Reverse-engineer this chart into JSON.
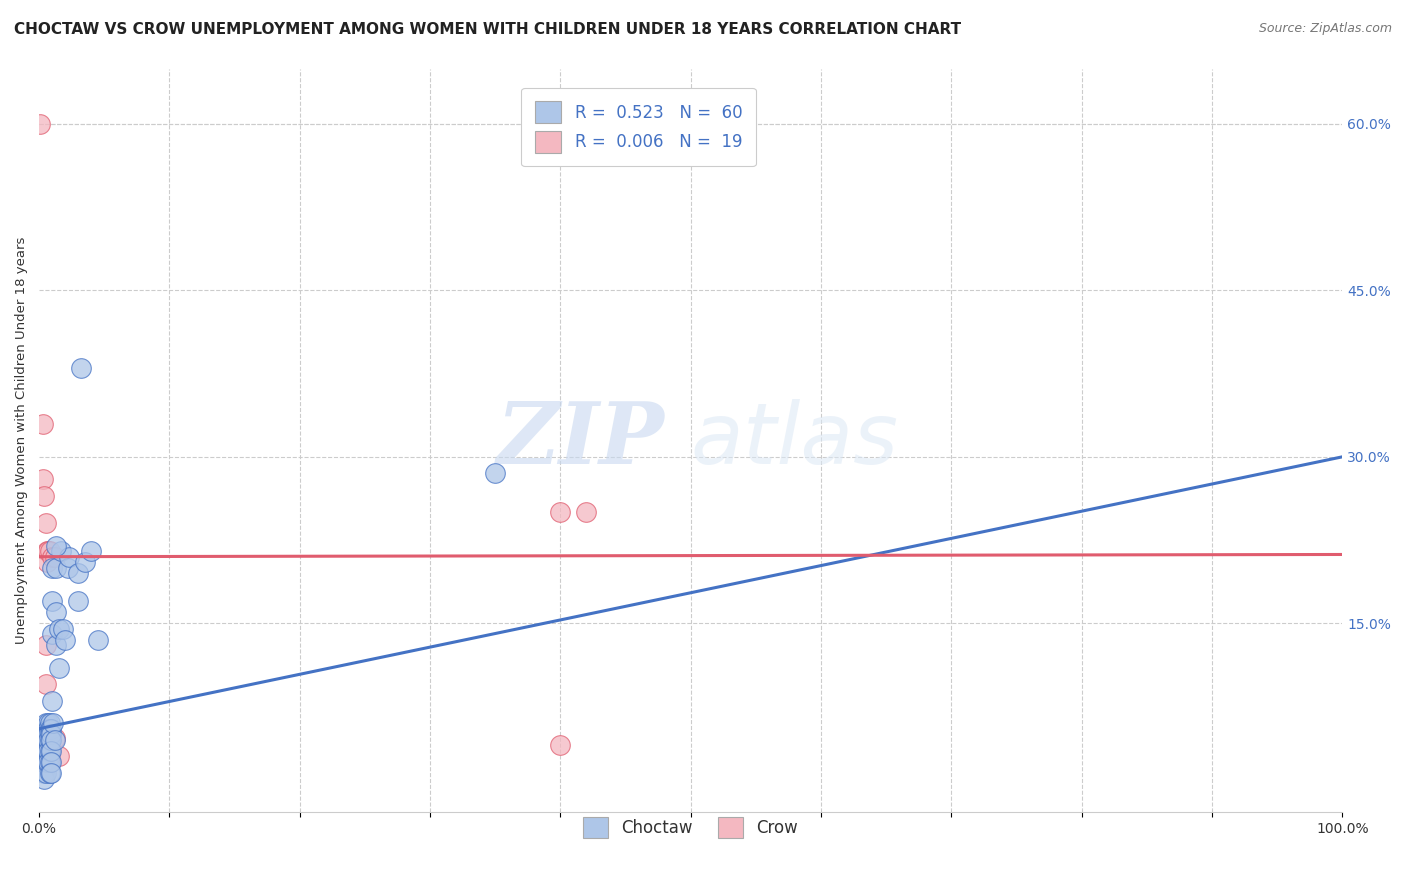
{
  "title": "CHOCTAW VS CROW UNEMPLOYMENT AMONG WOMEN WITH CHILDREN UNDER 18 YEARS CORRELATION CHART",
  "source": "Source: ZipAtlas.com",
  "ylabel": "Unemployment Among Women with Children Under 18 years",
  "xlim": [
    0,
    1.0
  ],
  "ylim": [
    -0.02,
    0.65
  ],
  "yticks_right": [
    0.15,
    0.3,
    0.45,
    0.6
  ],
  "yticklabels_right": [
    "15.0%",
    "30.0%",
    "45.0%",
    "60.0%"
  ],
  "grid_color": "#cccccc",
  "background_color": "#ffffff",
  "choctaw_color": "#aec6e8",
  "crow_color": "#f4b8c1",
  "choctaw_line_color": "#4472c4",
  "crow_line_color": "#e05c6e",
  "choctaw_R": 0.523,
  "choctaw_N": 60,
  "crow_R": 0.006,
  "crow_N": 19,
  "choctaw_scatter": [
    [
      0.002,
      0.055
    ],
    [
      0.003,
      0.04
    ],
    [
      0.003,
      0.03
    ],
    [
      0.004,
      0.025
    ],
    [
      0.004,
      0.015
    ],
    [
      0.004,
      0.01
    ],
    [
      0.005,
      0.06
    ],
    [
      0.005,
      0.05
    ],
    [
      0.005,
      0.045
    ],
    [
      0.005,
      0.035
    ],
    [
      0.005,
      0.025
    ],
    [
      0.005,
      0.015
    ],
    [
      0.006,
      0.055
    ],
    [
      0.006,
      0.05
    ],
    [
      0.006,
      0.045
    ],
    [
      0.006,
      0.035
    ],
    [
      0.006,
      0.025
    ],
    [
      0.007,
      0.06
    ],
    [
      0.007,
      0.055
    ],
    [
      0.007,
      0.05
    ],
    [
      0.007,
      0.045
    ],
    [
      0.007,
      0.035
    ],
    [
      0.007,
      0.025
    ],
    [
      0.008,
      0.06
    ],
    [
      0.008,
      0.055
    ],
    [
      0.008,
      0.05
    ],
    [
      0.008,
      0.045
    ],
    [
      0.008,
      0.035
    ],
    [
      0.008,
      0.025
    ],
    [
      0.008,
      0.015
    ],
    [
      0.009,
      0.055
    ],
    [
      0.009,
      0.05
    ],
    [
      0.009,
      0.045
    ],
    [
      0.009,
      0.035
    ],
    [
      0.009,
      0.025
    ],
    [
      0.009,
      0.015
    ],
    [
      0.01,
      0.2
    ],
    [
      0.01,
      0.17
    ],
    [
      0.01,
      0.14
    ],
    [
      0.01,
      0.08
    ],
    [
      0.011,
      0.06
    ],
    [
      0.012,
      0.045
    ],
    [
      0.013,
      0.2
    ],
    [
      0.013,
      0.16
    ],
    [
      0.013,
      0.13
    ],
    [
      0.015,
      0.145
    ],
    [
      0.015,
      0.11
    ],
    [
      0.017,
      0.215
    ],
    [
      0.018,
      0.145
    ],
    [
      0.02,
      0.135
    ],
    [
      0.022,
      0.2
    ],
    [
      0.023,
      0.21
    ],
    [
      0.03,
      0.195
    ],
    [
      0.032,
      0.38
    ],
    [
      0.03,
      0.17
    ],
    [
      0.035,
      0.205
    ],
    [
      0.04,
      0.215
    ],
    [
      0.045,
      0.135
    ],
    [
      0.35,
      0.285
    ],
    [
      0.013,
      0.22
    ]
  ],
  "crow_scatter": [
    [
      0.001,
      0.6
    ],
    [
      0.003,
      0.33
    ],
    [
      0.003,
      0.28
    ],
    [
      0.004,
      0.265
    ],
    [
      0.005,
      0.24
    ],
    [
      0.005,
      0.13
    ],
    [
      0.005,
      0.095
    ],
    [
      0.006,
      0.215
    ],
    [
      0.006,
      0.205
    ],
    [
      0.007,
      0.215
    ],
    [
      0.008,
      0.215
    ],
    [
      0.01,
      0.21
    ],
    [
      0.008,
      0.03
    ],
    [
      0.012,
      0.21
    ],
    [
      0.012,
      0.047
    ],
    [
      0.015,
      0.03
    ],
    [
      0.4,
      0.25
    ],
    [
      0.42,
      0.25
    ],
    [
      0.4,
      0.04
    ]
  ],
  "choctaw_trendline": [
    [
      0.0,
      0.055
    ],
    [
      1.0,
      0.3
    ]
  ],
  "crow_trendline": [
    [
      0.0,
      0.21
    ],
    [
      1.0,
      0.212
    ]
  ],
  "watermark_zip": "ZIP",
  "watermark_atlas": "atlas",
  "title_fontsize": 11,
  "axis_fontsize": 9.5,
  "tick_fontsize": 10
}
